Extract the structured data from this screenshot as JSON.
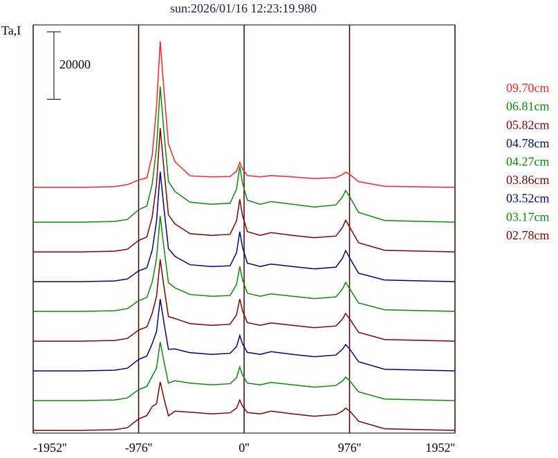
{
  "chart_data": {
    "type": "line",
    "title": "sun:2026/01/16 12:23:19.980",
    "y_label": "Ta,I",
    "scale_bar": 20000,
    "x": [
      -1952,
      -1500,
      -1200,
      -1080,
      -976,
      -900,
      -850,
      -810,
      -776,
      -740,
      -700,
      -640,
      -500,
      -300,
      -130,
      -70,
      -40,
      -15,
      30,
      150,
      250,
      450,
      650,
      850,
      910,
      940,
      980,
      1060,
      1300,
      1952
    ],
    "xlim": [
      -1952,
      1952
    ],
    "xticks": [
      {
        "value": -1952,
        "label": "-1952''"
      },
      {
        "value": -976,
        "label": "-976''"
      },
      {
        "value": 0,
        "label": "0''"
      },
      {
        "value": 976,
        "label": "976''"
      },
      {
        "value": 1952,
        "label": "1952''"
      }
    ],
    "ylim": [
      0,
      121000
    ],
    "grid": true,
    "series": [
      {
        "name": "09.70cm",
        "color": "#ff2020",
        "values": [
          2300,
          2300,
          2500,
          3100,
          4500,
          5100,
          11900,
          26100,
          45600,
          30400,
          15200,
          9900,
          5700,
          5400,
          5500,
          7100,
          9700,
          7800,
          5800,
          5400,
          5800,
          5400,
          4900,
          5200,
          6100,
          6800,
          6100,
          4000,
          2600,
          2300
        ]
      },
      {
        "name": "06.81cm",
        "color": "#088a08",
        "values": [
          800,
          800,
          1000,
          1600,
          4500,
          5600,
          12200,
          22900,
          41000,
          26900,
          12900,
          9900,
          6700,
          6100,
          6400,
          10600,
          17400,
          12300,
          7300,
          6100,
          6900,
          6100,
          5300,
          5900,
          8200,
          10200,
          8200,
          3700,
          1300,
          800
        ]
      },
      {
        "name": "05.82cm",
        "color": "#800000",
        "values": [
          800,
          800,
          1000,
          1600,
          4200,
          5200,
          11200,
          21000,
          37500,
          24700,
          11800,
          9100,
          6200,
          5700,
          6000,
          10000,
          16400,
          11600,
          6800,
          5700,
          6500,
          5700,
          5000,
          5500,
          8000,
          10200,
          8000,
          3500,
          1300,
          800
        ]
      },
      {
        "name": "04.78cm",
        "color": "#000080",
        "values": [
          800,
          800,
          1000,
          1600,
          4000,
          4900,
          10200,
          18700,
          33400,
          22000,
          10600,
          8300,
          5800,
          5300,
          5500,
          9400,
          15600,
          11000,
          6300,
          5300,
          6000,
          5300,
          4600,
          5100,
          7700,
          10000,
          7700,
          3300,
          1300,
          800
        ]
      },
      {
        "name": "04.27cm",
        "color": "#088a08",
        "values": [
          800,
          800,
          1000,
          1600,
          4000,
          4900,
          9600,
          16400,
          29100,
          19200,
          9300,
          7800,
          5800,
          5300,
          5500,
          8800,
          14100,
          10200,
          6200,
          5300,
          6000,
          5300,
          4600,
          5100,
          7400,
          9400,
          7400,
          3300,
          1300,
          800
        ]
      },
      {
        "name": "03.86cm",
        "color": "#800000",
        "values": [
          800,
          800,
          1000,
          1600,
          4100,
          5000,
          9100,
          14100,
          25000,
          16500,
          8100,
          7500,
          6000,
          5500,
          5800,
          8600,
          13300,
          9800,
          6300,
          5500,
          6200,
          5500,
          4800,
          5300,
          7300,
          9000,
          7300,
          3400,
          1300,
          800
        ]
      },
      {
        "name": "03.52cm",
        "color": "#000080",
        "values": [
          800,
          800,
          1000,
          1600,
          4200,
          5200,
          8900,
          12500,
          22100,
          14700,
          7200,
          7300,
          6200,
          5700,
          6000,
          8000,
          11300,
          8800,
          6300,
          5700,
          6500,
          5700,
          5000,
          5500,
          7200,
          8600,
          7200,
          3500,
          1300,
          800
        ]
      },
      {
        "name": "03.17cm",
        "color": "#088a08",
        "values": [
          800,
          800,
          1000,
          1600,
          4100,
          5000,
          8100,
          10400,
          18200,
          12100,
          6000,
          6700,
          6000,
          5500,
          5800,
          7600,
          10800,
          8400,
          6000,
          5500,
          6200,
          5500,
          4800,
          5300,
          6600,
          7800,
          6600,
          3400,
          1300,
          800
        ]
      },
      {
        "name": "02.78cm",
        "color": "#800000",
        "values": [
          800,
          800,
          1000,
          1600,
          4200,
          5200,
          7900,
          8700,
          15200,
          10100,
          5100,
          6500,
          6200,
          5700,
          6000,
          7400,
          9800,
          8000,
          6100,
          5700,
          6500,
          5700,
          5000,
          5500,
          6500,
          7400,
          6500,
          3500,
          1300,
          800
        ]
      }
    ]
  }
}
